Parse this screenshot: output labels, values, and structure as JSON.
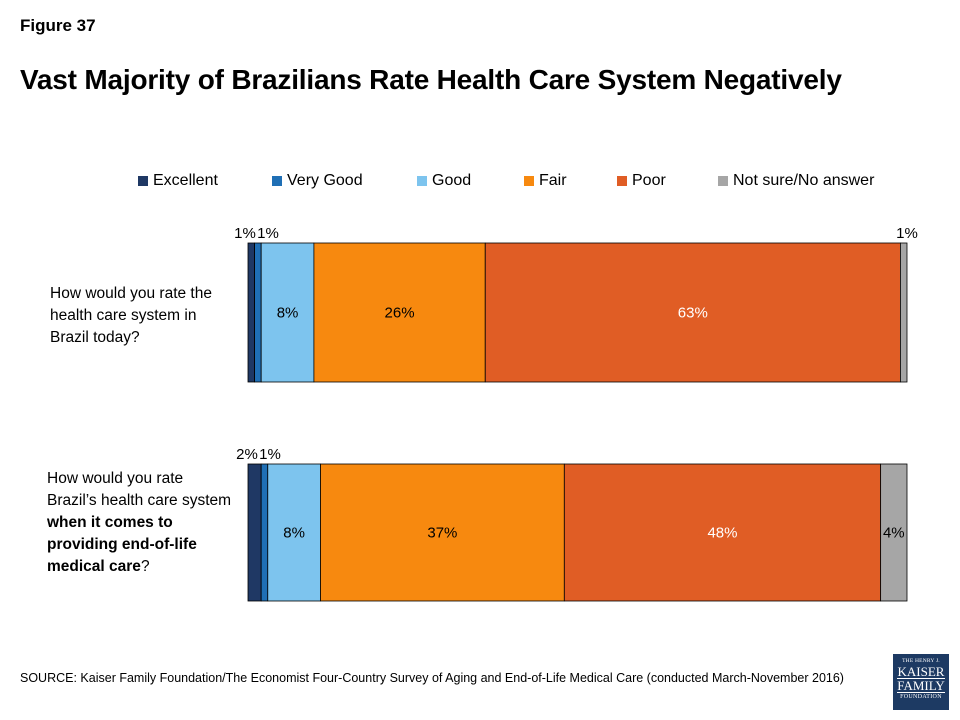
{
  "figure_label": "Figure 37",
  "title": "Vast Majority of Brazilians Rate Health Care System Negatively",
  "source": "SOURCE: Kaiser Family Foundation/The Economist Four-Country Survey of Aging and End-of-Life Medical Care (conducted March-November 2016)",
  "logo": {
    "line1": "THE HENRY J.",
    "line2": "KAISER",
    "line3": "FAMILY",
    "line4": "FOUNDATION"
  },
  "questions": [
    {
      "part1": "How would you rate the health care system in Brazil today?",
      "bold": "",
      "part2": ""
    },
    {
      "part1": "How would you rate Brazil’s health care system ",
      "bold": "when it comes to providing end-of-life medical care",
      "part2": "?"
    }
  ],
  "chart_data": {
    "type": "bar",
    "orientation": "horizontal",
    "stacked": true,
    "title": "Vast Majority of Brazilians Rate Health Care System Negatively",
    "legend_position": "top",
    "categories": [
      "How would you rate the health care system in Brazil today?",
      "How would you rate Brazil’s health care system when it comes to providing end-of-life medical care?"
    ],
    "series": [
      {
        "name": "Excellent",
        "color": "#1f3864",
        "values": [
          1,
          2
        ],
        "labels": [
          "1%",
          "2%"
        ]
      },
      {
        "name": "Very Good",
        "color": "#1f6fb5",
        "values": [
          1,
          1
        ],
        "labels": [
          "1%",
          "1%"
        ]
      },
      {
        "name": "Good",
        "color": "#7dc4ee",
        "values": [
          8,
          8
        ],
        "labels": [
          "8%",
          "8%"
        ]
      },
      {
        "name": "Fair",
        "color": "#f7890f",
        "values": [
          26,
          37
        ],
        "labels": [
          "26%",
          "37%"
        ]
      },
      {
        "name": "Poor",
        "color": "#e05d25",
        "values": [
          63,
          48
        ],
        "labels": [
          "63%",
          "48%"
        ]
      },
      {
        "name": "Not sure/No answer",
        "color": "#a6a6a6",
        "values": [
          1,
          4
        ],
        "labels": [
          "1%",
          "4%"
        ]
      }
    ]
  }
}
